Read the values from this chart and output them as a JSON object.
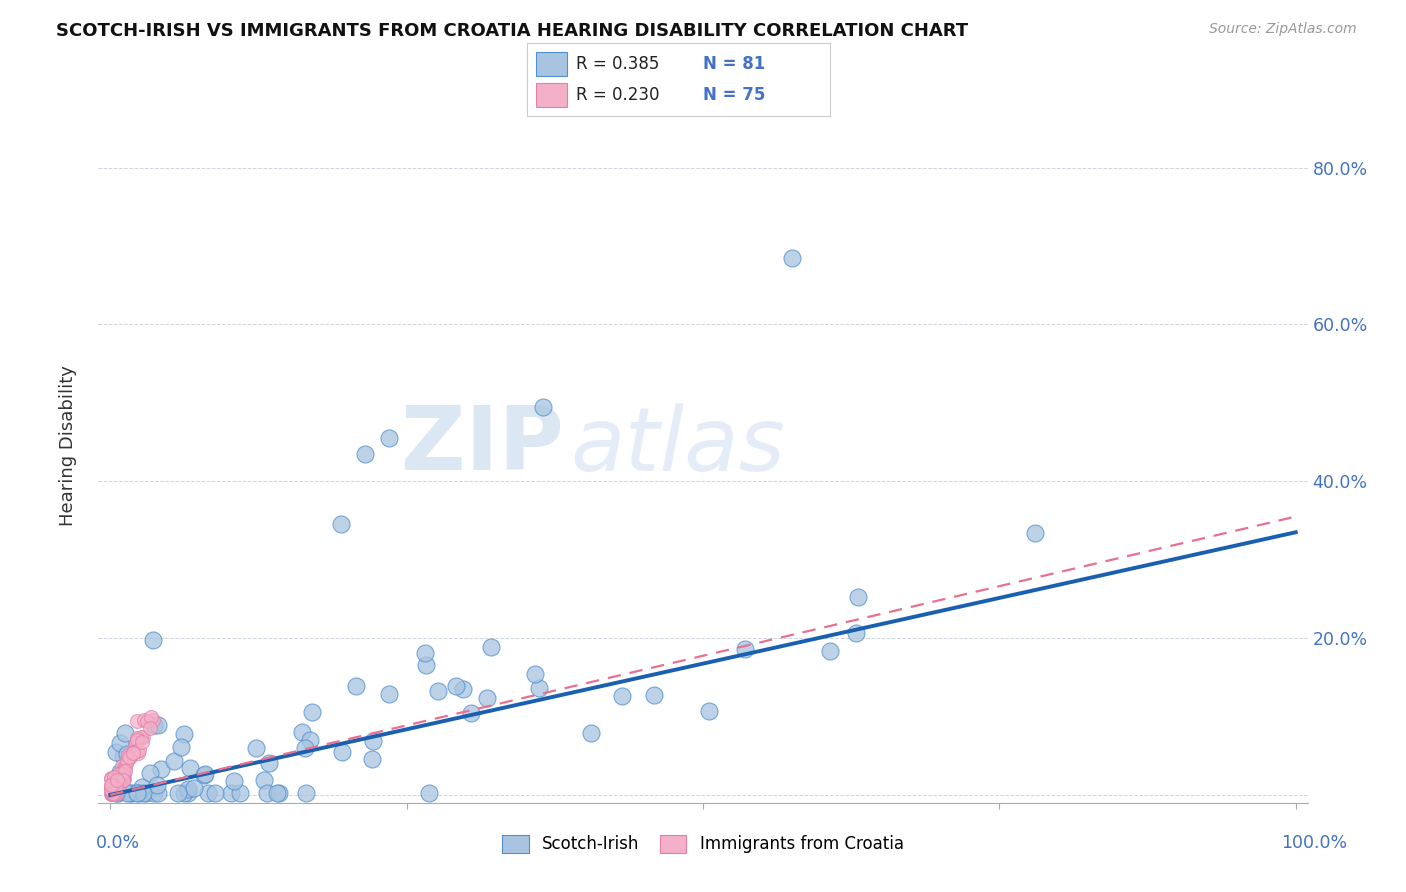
{
  "title": "SCOTCH-IRISH VS IMMIGRANTS FROM CROATIA HEARING DISABILITY CORRELATION CHART",
  "source": "Source: ZipAtlas.com",
  "ylabel": "Hearing Disability",
  "legend_r1": "R = 0.385",
  "legend_n1": "N = 81",
  "legend_r2": "R = 0.230",
  "legend_n2": "N = 75",
  "color_blue_fill": "#a8c4e0",
  "color_blue_edge": "#5090d0",
  "color_pink_fill": "#f4b0c8",
  "color_pink_edge": "#e080a8",
  "color_blue_line": "#1a5fb0",
  "color_pink_line": "#e87090",
  "blue_line_y_end": 0.335,
  "pink_line_y_end": 0.355,
  "ytick_positions": [
    0.0,
    0.2,
    0.4,
    0.6,
    0.8
  ],
  "ytick_labels": [
    "",
    "20.0%",
    "40.0%",
    "60.0%",
    "80.0%"
  ],
  "xlim": [
    0.0,
    1.0
  ],
  "ylim": [
    0.0,
    0.9
  ],
  "watermark_text": "ZIPatlas",
  "legend_label_blue": "Scotch-Irish",
  "legend_label_pink": "Immigrants from Croatia"
}
